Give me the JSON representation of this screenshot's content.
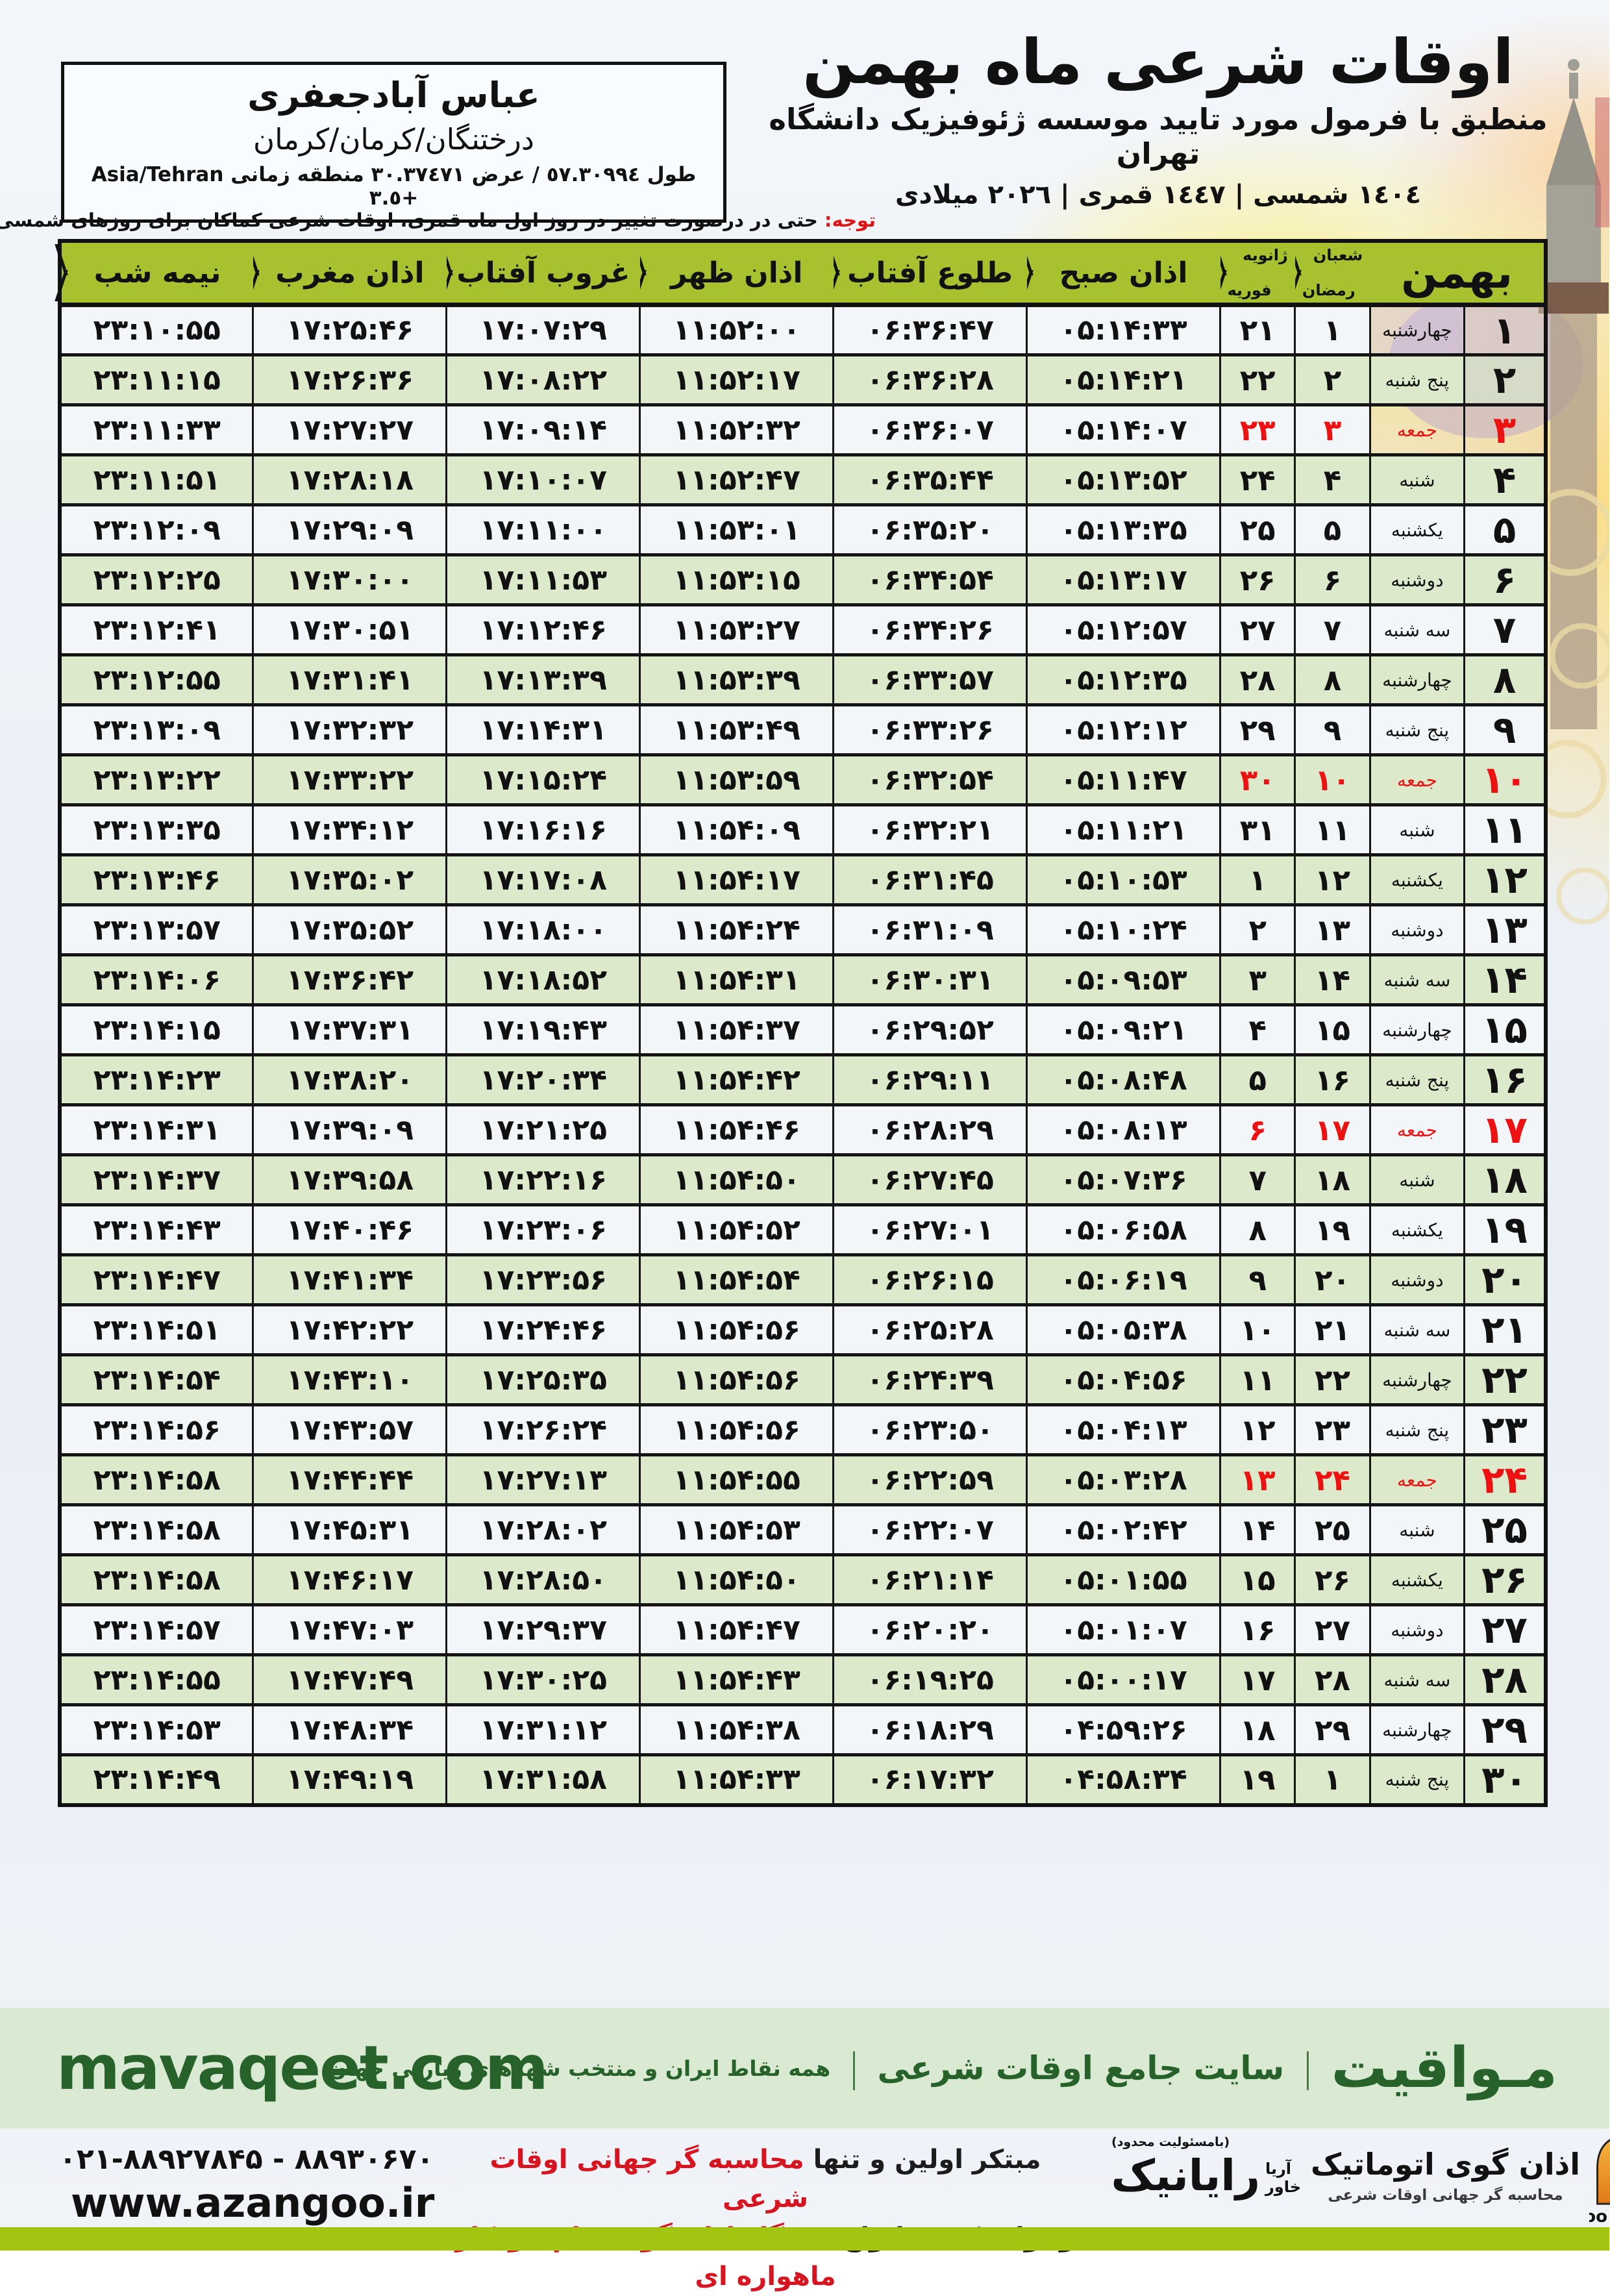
{
  "location_box": {
    "name": "عباس آبادجعفری",
    "region": "درختنگان/کرمان/کرمان",
    "coords": "طول ٥٧.٣٠٩٩٤ / عرض ٣٠.٣٧٤٧١ منطقه زمانی Asia/Tehran +٣.٥"
  },
  "header": {
    "title": "اوقات شرعی ماه بهمن",
    "subtitle": "منطبق با فرمول مورد تایید موسسه ژئوفیزیک دانشگاه تهران",
    "years": "١٤٠٤ شمسی | ١٤٤٧ قمری | ٢٠٢٦ میلادی"
  },
  "note": {
    "label": "توجه:",
    "text": " حتی در درصورت تغییر در روز اول ماه قمری، اوقات شرعی کماکان برای روزهای شمسی و میلادی معتبر است."
  },
  "table": {
    "headers": {
      "month": "بهمن",
      "hijri_top": "شعبان",
      "hijri_bottom": "رمضان",
      "greg_top": "ژانویه",
      "greg_bottom": "فوریه",
      "fajr": "اذان صبح",
      "sunrise": "طلوع آفتاب",
      "dhuhr": "اذان ظهر",
      "sunset": "غروب آفتاب",
      "maghrib": "اذان مغرب",
      "midnight": "نیمه شب"
    },
    "rows": [
      {
        "day": "۱",
        "weekday": "چهارشنبه",
        "hijri": "۱",
        "greg": "۲۱",
        "fajr": "۰۵:۱۴:۳۳",
        "sunrise": "۰۶:۳۶:۴۷",
        "dhuhr": "۱۱:۵۲:۰۰",
        "sunset": "۱۷:۰۷:۲۹",
        "maghrib": "۱۷:۲۵:۴۶",
        "midnight": "۲۳:۱۰:۵۵",
        "friday": false
      },
      {
        "day": "۲",
        "weekday": "پنج شنبه",
        "hijri": "۲",
        "greg": "۲۲",
        "fajr": "۰۵:۱۴:۲۱",
        "sunrise": "۰۶:۳۶:۲۸",
        "dhuhr": "۱۱:۵۲:۱۷",
        "sunset": "۱۷:۰۸:۲۲",
        "maghrib": "۱۷:۲۶:۳۶",
        "midnight": "۲۳:۱۱:۱۵",
        "friday": false
      },
      {
        "day": "۳",
        "weekday": "جمعه",
        "hijri": "۳",
        "greg": "۲۳",
        "fajr": "۰۵:۱۴:۰۷",
        "sunrise": "۰۶:۳۶:۰۷",
        "dhuhr": "۱۱:۵۲:۳۲",
        "sunset": "۱۷:۰۹:۱۴",
        "maghrib": "۱۷:۲۷:۲۷",
        "midnight": "۲۳:۱۱:۳۳",
        "friday": true
      },
      {
        "day": "۴",
        "weekday": "شنبه",
        "hijri": "۴",
        "greg": "۲۴",
        "fajr": "۰۵:۱۳:۵۲",
        "sunrise": "۰۶:۳۵:۴۴",
        "dhuhr": "۱۱:۵۲:۴۷",
        "sunset": "۱۷:۱۰:۰۷",
        "maghrib": "۱۷:۲۸:۱۸",
        "midnight": "۲۳:۱۱:۵۱",
        "friday": false
      },
      {
        "day": "۵",
        "weekday": "یکشنبه",
        "hijri": "۵",
        "greg": "۲۵",
        "fajr": "۰۵:۱۳:۳۵",
        "sunrise": "۰۶:۳۵:۲۰",
        "dhuhr": "۱۱:۵۳:۰۱",
        "sunset": "۱۷:۱۱:۰۰",
        "maghrib": "۱۷:۲۹:۰۹",
        "midnight": "۲۳:۱۲:۰۹",
        "friday": false
      },
      {
        "day": "۶",
        "weekday": "دوشنبه",
        "hijri": "۶",
        "greg": "۲۶",
        "fajr": "۰۵:۱۳:۱۷",
        "sunrise": "۰۶:۳۴:۵۴",
        "dhuhr": "۱۱:۵۳:۱۵",
        "sunset": "۱۷:۱۱:۵۳",
        "maghrib": "۱۷:۳۰:۰۰",
        "midnight": "۲۳:۱۲:۲۵",
        "friday": false
      },
      {
        "day": "۷",
        "weekday": "سه شنبه",
        "hijri": "۷",
        "greg": "۲۷",
        "fajr": "۰۵:۱۲:۵۷",
        "sunrise": "۰۶:۳۴:۲۶",
        "dhuhr": "۱۱:۵۳:۲۷",
        "sunset": "۱۷:۱۲:۴۶",
        "maghrib": "۱۷:۳۰:۵۱",
        "midnight": "۲۳:۱۲:۴۱",
        "friday": false
      },
      {
        "day": "۸",
        "weekday": "چهارشنبه",
        "hijri": "۸",
        "greg": "۲۸",
        "fajr": "۰۵:۱۲:۳۵",
        "sunrise": "۰۶:۳۳:۵۷",
        "dhuhr": "۱۱:۵۳:۳۹",
        "sunset": "۱۷:۱۳:۳۹",
        "maghrib": "۱۷:۳۱:۴۱",
        "midnight": "۲۳:۱۲:۵۵",
        "friday": false
      },
      {
        "day": "۹",
        "weekday": "پنج شنبه",
        "hijri": "۹",
        "greg": "۲۹",
        "fajr": "۰۵:۱۲:۱۲",
        "sunrise": "۰۶:۳۳:۲۶",
        "dhuhr": "۱۱:۵۳:۴۹",
        "sunset": "۱۷:۱۴:۳۱",
        "maghrib": "۱۷:۳۲:۳۲",
        "midnight": "۲۳:۱۳:۰۹",
        "friday": false
      },
      {
        "day": "۱۰",
        "weekday": "جمعه",
        "hijri": "۱۰",
        "greg": "۳۰",
        "fajr": "۰۵:۱۱:۴۷",
        "sunrise": "۰۶:۳۲:۵۴",
        "dhuhr": "۱۱:۵۳:۵۹",
        "sunset": "۱۷:۱۵:۲۴",
        "maghrib": "۱۷:۳۳:۲۲",
        "midnight": "۲۳:۱۳:۲۲",
        "friday": true
      },
      {
        "day": "۱۱",
        "weekday": "شنبه",
        "hijri": "۱۱",
        "greg": "۳۱",
        "fajr": "۰۵:۱۱:۲۱",
        "sunrise": "۰۶:۳۲:۲۱",
        "dhuhr": "۱۱:۵۴:۰۹",
        "sunset": "۱۷:۱۶:۱۶",
        "maghrib": "۱۷:۳۴:۱۲",
        "midnight": "۲۳:۱۳:۳۵",
        "friday": false
      },
      {
        "day": "۱۲",
        "weekday": "یکشنبه",
        "hijri": "۱۲",
        "greg": "۱",
        "fajr": "۰۵:۱۰:۵۳",
        "sunrise": "۰۶:۳۱:۴۵",
        "dhuhr": "۱۱:۵۴:۱۷",
        "sunset": "۱۷:۱۷:۰۸",
        "maghrib": "۱۷:۳۵:۰۲",
        "midnight": "۲۳:۱۳:۴۶",
        "friday": false
      },
      {
        "day": "۱۳",
        "weekday": "دوشنبه",
        "hijri": "۱۳",
        "greg": "۲",
        "fajr": "۰۵:۱۰:۲۴",
        "sunrise": "۰۶:۳۱:۰۹",
        "dhuhr": "۱۱:۵۴:۲۴",
        "sunset": "۱۷:۱۸:۰۰",
        "maghrib": "۱۷:۳۵:۵۲",
        "midnight": "۲۳:۱۳:۵۷",
        "friday": false
      },
      {
        "day": "۱۴",
        "weekday": "سه شنبه",
        "hijri": "۱۴",
        "greg": "۳",
        "fajr": "۰۵:۰۹:۵۳",
        "sunrise": "۰۶:۳۰:۳۱",
        "dhuhr": "۱۱:۵۴:۳۱",
        "sunset": "۱۷:۱۸:۵۲",
        "maghrib": "۱۷:۳۶:۴۲",
        "midnight": "۲۳:۱۴:۰۶",
        "friday": false
      },
      {
        "day": "۱۵",
        "weekday": "چهارشنبه",
        "hijri": "۱۵",
        "greg": "۴",
        "fajr": "۰۵:۰۹:۲۱",
        "sunrise": "۰۶:۲۹:۵۲",
        "dhuhr": "۱۱:۵۴:۳۷",
        "sunset": "۱۷:۱۹:۴۳",
        "maghrib": "۱۷:۳۷:۳۱",
        "midnight": "۲۳:۱۴:۱۵",
        "friday": false
      },
      {
        "day": "۱۶",
        "weekday": "پنج شنبه",
        "hijri": "۱۶",
        "greg": "۵",
        "fajr": "۰۵:۰۸:۴۸",
        "sunrise": "۰۶:۲۹:۱۱",
        "dhuhr": "۱۱:۵۴:۴۲",
        "sunset": "۱۷:۲۰:۳۴",
        "maghrib": "۱۷:۳۸:۲۰",
        "midnight": "۲۳:۱۴:۲۳",
        "friday": false
      },
      {
        "day": "۱۷",
        "weekday": "جمعه",
        "hijri": "۱۷",
        "greg": "۶",
        "fajr": "۰۵:۰۸:۱۳",
        "sunrise": "۰۶:۲۸:۲۹",
        "dhuhr": "۱۱:۵۴:۴۶",
        "sunset": "۱۷:۲۱:۲۵",
        "maghrib": "۱۷:۳۹:۰۹",
        "midnight": "۲۳:۱۴:۳۱",
        "friday": true
      },
      {
        "day": "۱۸",
        "weekday": "شنبه",
        "hijri": "۱۸",
        "greg": "۷",
        "fajr": "۰۵:۰۷:۳۶",
        "sunrise": "۰۶:۲۷:۴۵",
        "dhuhr": "۱۱:۵۴:۵۰",
        "sunset": "۱۷:۲۲:۱۶",
        "maghrib": "۱۷:۳۹:۵۸",
        "midnight": "۲۳:۱۴:۳۷",
        "friday": false
      },
      {
        "day": "۱۹",
        "weekday": "یکشنبه",
        "hijri": "۱۹",
        "greg": "۸",
        "fajr": "۰۵:۰۶:۵۸",
        "sunrise": "۰۶:۲۷:۰۱",
        "dhuhr": "۱۱:۵۴:۵۲",
        "sunset": "۱۷:۲۳:۰۶",
        "maghrib": "۱۷:۴۰:۴۶",
        "midnight": "۲۳:۱۴:۴۳",
        "friday": false
      },
      {
        "day": "۲۰",
        "weekday": "دوشنبه",
        "hijri": "۲۰",
        "greg": "۹",
        "fajr": "۰۵:۰۶:۱۹",
        "sunrise": "۰۶:۲۶:۱۵",
        "dhuhr": "۱۱:۵۴:۵۴",
        "sunset": "۱۷:۲۳:۵۶",
        "maghrib": "۱۷:۴۱:۳۴",
        "midnight": "۲۳:۱۴:۴۷",
        "friday": false
      },
      {
        "day": "۲۱",
        "weekday": "سه شنبه",
        "hijri": "۲۱",
        "greg": "۱۰",
        "fajr": "۰۵:۰۵:۳۸",
        "sunrise": "۰۶:۲۵:۲۸",
        "dhuhr": "۱۱:۵۴:۵۶",
        "sunset": "۱۷:۲۴:۴۶",
        "maghrib": "۱۷:۴۲:۲۲",
        "midnight": "۲۳:۱۴:۵۱",
        "friday": false
      },
      {
        "day": "۲۲",
        "weekday": "چهارشنبه",
        "hijri": "۲۲",
        "greg": "۱۱",
        "fajr": "۰۵:۰۴:۵۶",
        "sunrise": "۰۶:۲۴:۳۹",
        "dhuhr": "۱۱:۵۴:۵۶",
        "sunset": "۱۷:۲۵:۳۵",
        "maghrib": "۱۷:۴۳:۱۰",
        "midnight": "۲۳:۱۴:۵۴",
        "friday": false
      },
      {
        "day": "۲۳",
        "weekday": "پنج شنبه",
        "hijri": "۲۳",
        "greg": "۱۲",
        "fajr": "۰۵:۰۴:۱۳",
        "sunrise": "۰۶:۲۳:۵۰",
        "dhuhr": "۱۱:۵۴:۵۶",
        "sunset": "۱۷:۲۶:۲۴",
        "maghrib": "۱۷:۴۳:۵۷",
        "midnight": "۲۳:۱۴:۵۶",
        "friday": false
      },
      {
        "day": "۲۴",
        "weekday": "جمعه",
        "hijri": "۲۴",
        "greg": "۱۳",
        "fajr": "۰۵:۰۳:۲۸",
        "sunrise": "۰۶:۲۲:۵۹",
        "dhuhr": "۱۱:۵۴:۵۵",
        "sunset": "۱۷:۲۷:۱۳",
        "maghrib": "۱۷:۴۴:۴۴",
        "midnight": "۲۳:۱۴:۵۸",
        "friday": true
      },
      {
        "day": "۲۵",
        "weekday": "شنبه",
        "hijri": "۲۵",
        "greg": "۱۴",
        "fajr": "۰۵:۰۲:۴۲",
        "sunrise": "۰۶:۲۲:۰۷",
        "dhuhr": "۱۱:۵۴:۵۳",
        "sunset": "۱۷:۲۸:۰۲",
        "maghrib": "۱۷:۴۵:۳۱",
        "midnight": "۲۳:۱۴:۵۸",
        "friday": false
      },
      {
        "day": "۲۶",
        "weekday": "یکشنبه",
        "hijri": "۲۶",
        "greg": "۱۵",
        "fajr": "۰۵:۰۱:۵۵",
        "sunrise": "۰۶:۲۱:۱۴",
        "dhuhr": "۱۱:۵۴:۵۰",
        "sunset": "۱۷:۲۸:۵۰",
        "maghrib": "۱۷:۴۶:۱۷",
        "midnight": "۲۳:۱۴:۵۸",
        "friday": false
      },
      {
        "day": "۲۷",
        "weekday": "دوشنبه",
        "hijri": "۲۷",
        "greg": "۱۶",
        "fajr": "۰۵:۰۱:۰۷",
        "sunrise": "۰۶:۲۰:۲۰",
        "dhuhr": "۱۱:۵۴:۴۷",
        "sunset": "۱۷:۲۹:۳۷",
        "maghrib": "۱۷:۴۷:۰۳",
        "midnight": "۲۳:۱۴:۵۷",
        "friday": false
      },
      {
        "day": "۲۸",
        "weekday": "سه شنبه",
        "hijri": "۲۸",
        "greg": "۱۷",
        "fajr": "۰۵:۰۰:۱۷",
        "sunrise": "۰۶:۱۹:۲۵",
        "dhuhr": "۱۱:۵۴:۴۳",
        "sunset": "۱۷:۳۰:۲۵",
        "maghrib": "۱۷:۴۷:۴۹",
        "midnight": "۲۳:۱۴:۵۵",
        "friday": false
      },
      {
        "day": "۲۹",
        "weekday": "چهارشنبه",
        "hijri": "۲۹",
        "greg": "۱۸",
        "fajr": "۰۴:۵۹:۲۶",
        "sunrise": "۰۶:۱۸:۲۹",
        "dhuhr": "۱۱:۵۴:۳۸",
        "sunset": "۱۷:۳۱:۱۲",
        "maghrib": "۱۷:۴۸:۳۴",
        "midnight": "۲۳:۱۴:۵۳",
        "friday": false
      },
      {
        "day": "۳۰",
        "weekday": "پنج شنبه",
        "hijri": "۱",
        "greg": "۱۹",
        "fajr": "۰۴:۵۸:۳۴",
        "sunrise": "۰۶:۱۷:۳۲",
        "dhuhr": "۱۱:۵۴:۳۳",
        "sunset": "۱۷:۳۱:۵۸",
        "maghrib": "۱۷:۴۹:۱۹",
        "midnight": "۲۳:۱۴:۴۹",
        "friday": false
      }
    ]
  },
  "footer": {
    "site_title": "مـواقیت",
    "separator": "|",
    "site_desc": "سایت جامع اوقات شرعی",
    "site_scope": "همه نقاط ایران و منتخب شهرهای زیارتی جهان",
    "site_url": "mavaqeet.com",
    "line1_black": "مبتکر اولین و تنها ",
    "line1_red": "محاسبه گر جهانی اوقات شرعی",
    "line2_black": "و تولید کننده انواع ",
    "line2_red": "دستگاه اذان گوی تمام خودکار ماهواره ای",
    "phone": "۰۲۱-۸۸۹۲۷۸۴۵ - ۸۸۹۳۰۶۷۰",
    "url": "www.azangoo.ir",
    "rayanik_small": "(بامسئولیت محدود)",
    "rayanik_name": "رایانیک",
    "rayanik_sub1": "آریا",
    "rayanik_sub2": "خاور",
    "azangoo_fa": "اذان گوی اتوماتیک",
    "azangoo_tagline": "محاسبه گر جهانی اوقات شرعی",
    "azangoo_latin_a": "a",
    "azangoo_latin_rest": "zangoo"
  },
  "colors": {
    "header_green": "#a8c22f",
    "row_green": "#dce9cb",
    "row_light": "#f3f6f9",
    "friday_red": "#ee1111",
    "footer_bar_green": "#d9e9d2",
    "footer_text_green": "#27622a",
    "bottom_bar_green": "#a4c412",
    "brand_red": "#d81420"
  }
}
